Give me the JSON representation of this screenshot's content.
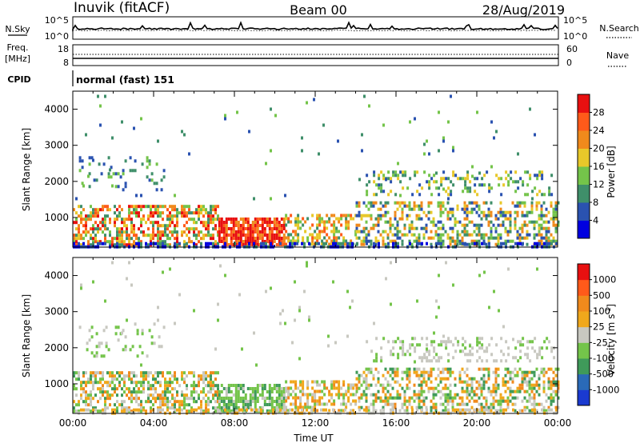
{
  "header": {
    "radar": "Inuvik (fitACF)",
    "beam": "Beam 00",
    "date": "28/Aug/2019"
  },
  "nsky_panel": {
    "left_label": "N.Sky",
    "left_ticks": [
      "10^5",
      "10^0"
    ],
    "right_label": "N.Search",
    "right_ticks": [
      "10^5",
      "10^0"
    ]
  },
  "freq_panel": {
    "left_label_1": "Freq.",
    "left_label_2": "[MHz]",
    "left_ticks": [
      "18",
      "8"
    ],
    "right_label": "Nave",
    "right_ticks": [
      "60",
      "0"
    ]
  },
  "cpid_panel": {
    "label": "CPID",
    "text": "normal (fast) 151"
  },
  "chart_data": [
    {
      "type": "heatmap",
      "name": "power",
      "ylabel": "Slant Range [km]",
      "ylim": [
        180,
        4500
      ],
      "yticks": [
        1000,
        2000,
        3000,
        4000
      ],
      "xlim": [
        0,
        24
      ],
      "colorbar": {
        "label": "Power [dB]",
        "ticks": [
          "4",
          "8",
          "12",
          "16",
          "20",
          "24",
          "28"
        ],
        "colors": [
          "#0000e0",
          "#2a52b0",
          "#3f8f6a",
          "#74c44a",
          "#e8c82a",
          "#f08a1c",
          "#ff5a1a",
          "#e81010"
        ]
      },
      "regions": [
        {
          "t0": 0.0,
          "t1": 7.2,
          "r0": 250,
          "r1": 1350,
          "density": 0.55,
          "colors": [
            "#3f8f6a",
            "#74c44a",
            "#e8c82a",
            "#f08a1c",
            "#ff5a1a",
            "#e81010"
          ]
        },
        {
          "t0": 7.2,
          "t1": 10.5,
          "r0": 250,
          "r1": 1000,
          "density": 0.85,
          "colors": [
            "#e81010",
            "#ff5a1a",
            "#e81010",
            "#f08a1c"
          ]
        },
        {
          "t0": 10.5,
          "t1": 14.0,
          "r0": 250,
          "r1": 1100,
          "density": 0.5,
          "colors": [
            "#3f8f6a",
            "#74c44a",
            "#e8c82a",
            "#f08a1c",
            "#ff5a1a"
          ]
        },
        {
          "t0": 14.0,
          "t1": 24.0,
          "r0": 250,
          "r1": 1450,
          "density": 0.45,
          "colors": [
            "#2a52b0",
            "#3f8f6a",
            "#74c44a",
            "#e8c82a",
            "#f08a1c"
          ]
        },
        {
          "t0": 0.3,
          "t1": 4.5,
          "r0": 1750,
          "r1": 2700,
          "density": 0.12,
          "colors": [
            "#2a52b0",
            "#3f8f6a",
            "#74c44a"
          ]
        },
        {
          "t0": 14.5,
          "t1": 23.8,
          "r0": 1600,
          "r1": 2300,
          "density": 0.25,
          "colors": [
            "#2a52b0",
            "#3f8f6a",
            "#74c44a",
            "#e8c82a"
          ]
        },
        {
          "t0": 0.0,
          "t1": 24.0,
          "r0": 1500,
          "r1": 4400,
          "density": 0.01,
          "colors": [
            "#3f8f6a",
            "#74c44a",
            "#2a52b0"
          ]
        },
        {
          "t0": 0.0,
          "t1": 24.0,
          "r0": 180,
          "r1": 320,
          "density": 0.5,
          "colors": [
            "#2a52b0",
            "#0000e0",
            "#3f8f6a"
          ]
        }
      ]
    },
    {
      "type": "heatmap",
      "name": "velocity",
      "xlabel": "Time UT",
      "ylabel": "Slant Range [km]",
      "ylim": [
        180,
        4500
      ],
      "yticks": [
        1000,
        2000,
        3000,
        4000
      ],
      "xlim": [
        0,
        24
      ],
      "xticks": [
        "00:00",
        "04:00",
        "08:00",
        "12:00",
        "16:00",
        "20:00",
        "00:00"
      ],
      "colorbar": {
        "label": "Velocity [m s",
        "label_sup": "-1",
        "label_end": "]",
        "ticks": [
          "1000",
          "500",
          "100",
          "25",
          "-25",
          "-100",
          "-500",
          "-1000"
        ],
        "colors": [
          "#1a3ad0",
          "#2a6ab8",
          "#3f9a5a",
          "#74c44a",
          "#c8c8c0",
          "#f0a81c",
          "#f08a1c",
          "#ff5a1a",
          "#e81010"
        ]
      },
      "regions": [
        {
          "t0": 0.0,
          "t1": 7.2,
          "r0": 250,
          "r1": 1350,
          "density": 0.55,
          "colors": [
            "#3f9a5a",
            "#74c44a",
            "#f0a81c",
            "#f08a1c",
            "#c8c8c0"
          ]
        },
        {
          "t0": 7.2,
          "t1": 10.5,
          "r0": 250,
          "r1": 1000,
          "density": 0.75,
          "colors": [
            "#3f9a5a",
            "#74c44a",
            "#c8c8c0",
            "#74c44a"
          ]
        },
        {
          "t0": 10.5,
          "t1": 14.0,
          "r0": 250,
          "r1": 1100,
          "density": 0.5,
          "colors": [
            "#c8c8c0",
            "#f0a81c",
            "#f08a1c",
            "#74c44a"
          ]
        },
        {
          "t0": 14.0,
          "t1": 24.0,
          "r0": 250,
          "r1": 1450,
          "density": 0.45,
          "colors": [
            "#3f9a5a",
            "#74c44a",
            "#c8c8c0",
            "#f0a81c",
            "#f08a1c"
          ]
        },
        {
          "t0": 0.3,
          "t1": 4.5,
          "r0": 1750,
          "r1": 2700,
          "density": 0.12,
          "colors": [
            "#c8c8c0",
            "#74c44a"
          ]
        },
        {
          "t0": 14.5,
          "t1": 23.8,
          "r0": 1600,
          "r1": 2300,
          "density": 0.25,
          "colors": [
            "#c8c8c0",
            "#c8c8c0",
            "#74c44a"
          ]
        },
        {
          "t0": 0.0,
          "t1": 24.0,
          "r0": 1500,
          "r1": 4400,
          "density": 0.01,
          "colors": [
            "#c8c8c0",
            "#74c44a"
          ]
        },
        {
          "t0": 0.0,
          "t1": 24.0,
          "r0": 180,
          "r1": 320,
          "density": 0.4,
          "colors": [
            "#c8c8c0",
            "#f0a81c"
          ]
        }
      ]
    }
  ]
}
